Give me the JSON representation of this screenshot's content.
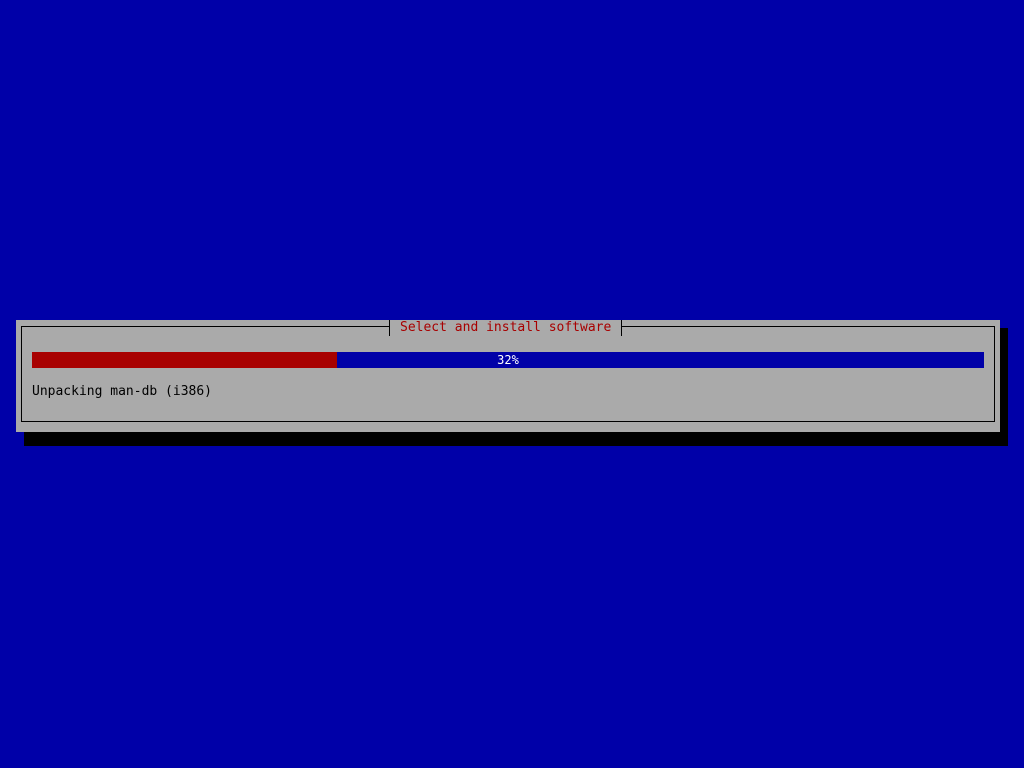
{
  "colors": {
    "background": "#0000a8",
    "dialog": "#aaaaaa",
    "title": "#a80000",
    "progress_fill": "#a80000",
    "progress_track": "#0000a8"
  },
  "dialog": {
    "title": "Select and install software",
    "progress": {
      "percent": 32,
      "label": "32%"
    },
    "status": "Unpacking man-db (i386)"
  }
}
